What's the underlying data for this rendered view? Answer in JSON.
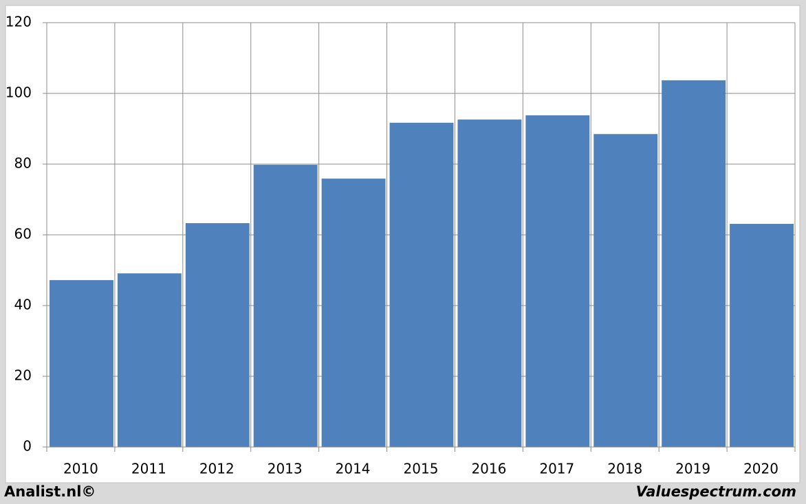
{
  "chart_data": {
    "type": "bar",
    "categories": [
      "2010",
      "2011",
      "2012",
      "2013",
      "2014",
      "2015",
      "2016",
      "2017",
      "2018",
      "2019",
      "2020"
    ],
    "values": [
      47.2,
      49.1,
      63.3,
      79.8,
      75.9,
      91.7,
      92.6,
      93.8,
      88.5,
      103.7,
      63.1
    ],
    "color": "#4f81bd",
    "ylim": [
      0,
      120
    ],
    "yticks": [
      0,
      20,
      40,
      60,
      80,
      100,
      120
    ],
    "grid": true,
    "annotations": [
      "Analist.nl©",
      "Valuespectrum.com"
    ]
  }
}
